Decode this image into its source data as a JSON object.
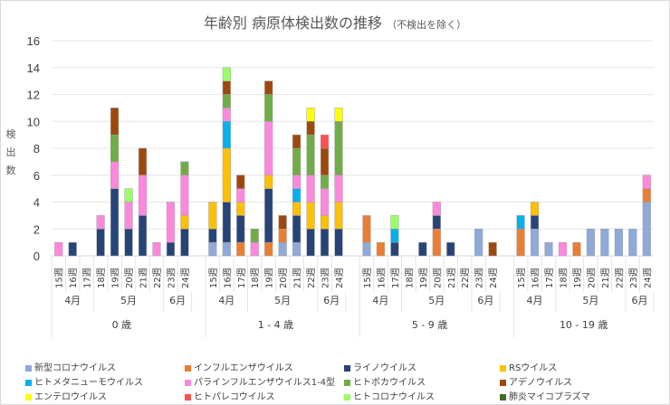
{
  "chart_data": {
    "type": "bar",
    "stacked": true,
    "title": "年齢別 病原体検出数の推移",
    "subtitle": "（不検出を除く）",
    "ylabel": "検出数",
    "xlabel": "",
    "ylim": [
      0,
      16
    ],
    "yticks": [
      0,
      2,
      4,
      6,
      8,
      10,
      12,
      14,
      16
    ],
    "grid": true,
    "legend_position": "bottom",
    "week_labels": [
      "15週",
      "16週",
      "17週",
      "18週",
      "19週",
      "20週",
      "21週",
      "22週",
      "23週",
      "24週"
    ],
    "month_labels": [
      {
        "label": "4月",
        "weeks": [
          0,
          2
        ]
      },
      {
        "label": "5月",
        "weeks": [
          3,
          7
        ]
      },
      {
        "label": "6月",
        "weeks": [
          8,
          9
        ]
      }
    ],
    "groups": [
      "0 歳",
      "1 - 4 歳",
      "5 - 9 歳",
      "10 - 19 歳"
    ],
    "series": [
      {
        "name": "新型コロナウイルス",
        "color": "#8eaadb",
        "values": [
          [
            0,
            0,
            0,
            0,
            0,
            0,
            0,
            0,
            0,
            0
          ],
          [
            1,
            1,
            0,
            0,
            0,
            1,
            1,
            0,
            0,
            0
          ],
          [
            1,
            0,
            0,
            0,
            0,
            0,
            0,
            0,
            2,
            0
          ],
          [
            0,
            2,
            1,
            0,
            0,
            2,
            2,
            2,
            2,
            4
          ]
        ]
      },
      {
        "name": "インフルエンザウイルス",
        "color": "#ed7d31",
        "values": [
          [
            0,
            0,
            0,
            0,
            0,
            0,
            0,
            0,
            0,
            0
          ],
          [
            0,
            0,
            1,
            0,
            1,
            1,
            0,
            0,
            0,
            0
          ],
          [
            2,
            1,
            0,
            0,
            0,
            2,
            0,
            0,
            0,
            0
          ],
          [
            2,
            0,
            0,
            0,
            1,
            0,
            0,
            0,
            0,
            1
          ]
        ]
      },
      {
        "name": "ライノウイルス",
        "color": "#264478",
        "values": [
          [
            0,
            1,
            0,
            2,
            5,
            2,
            3,
            0,
            1,
            2
          ],
          [
            1,
            3,
            2,
            0,
            4,
            0,
            2,
            2,
            2,
            2
          ],
          [
            0,
            0,
            1,
            0,
            1,
            1,
            1,
            0,
            0,
            0
          ],
          [
            0,
            1,
            0,
            0,
            0,
            0,
            0,
            0,
            0,
            0
          ]
        ]
      },
      {
        "name": "RSウイルス",
        "color": "#ffc000",
        "values": [
          [
            0,
            0,
            0,
            0,
            0,
            0,
            0,
            0,
            0,
            1
          ],
          [
            2,
            4,
            1,
            0,
            1,
            0,
            1,
            2,
            1,
            2
          ],
          [
            0,
            0,
            0,
            0,
            0,
            0,
            0,
            0,
            0,
            0
          ],
          [
            0,
            1,
            0,
            0,
            0,
            0,
            0,
            0,
            0,
            0
          ]
        ]
      },
      {
        "name": "ヒトメタニューモウイルス",
        "color": "#00b0f0",
        "values": [
          [
            0,
            0,
            0,
            0,
            0,
            0,
            0,
            0,
            0,
            0
          ],
          [
            0,
            2,
            0,
            0,
            0,
            0,
            1,
            0,
            0,
            0
          ],
          [
            0,
            0,
            1,
            0,
            0,
            0,
            0,
            0,
            0,
            0
          ],
          [
            1,
            0,
            0,
            0,
            0,
            0,
            0,
            0,
            0,
            0
          ]
        ]
      },
      {
        "name": "パラインフルエンザウイルス1-4型",
        "color": "#ff88dd",
        "values": [
          [
            1,
            0,
            0,
            1,
            2,
            2,
            3,
            1,
            3,
            3
          ],
          [
            0,
            1,
            1,
            1,
            4,
            0,
            1,
            2,
            2,
            2
          ],
          [
            0,
            0,
            0,
            0,
            0,
            1,
            0,
            0,
            0,
            0
          ],
          [
            0,
            0,
            0,
            1,
            0,
            0,
            0,
            0,
            0,
            1
          ]
        ]
      },
      {
        "name": "ヒトボカウイルス",
        "color": "#70ad47",
        "values": [
          [
            0,
            0,
            0,
            0,
            2,
            0,
            0,
            0,
            0,
            1
          ],
          [
            0,
            1,
            0,
            1,
            2,
            0,
            2,
            3,
            1,
            4
          ],
          [
            0,
            0,
            0,
            0,
            0,
            0,
            0,
            0,
            0,
            0
          ],
          [
            0,
            0,
            0,
            0,
            0,
            0,
            0,
            0,
            0,
            0
          ]
        ]
      },
      {
        "name": "アデノウイルス",
        "color": "#9e480e",
        "values": [
          [
            0,
            0,
            0,
            0,
            2,
            0,
            2,
            0,
            0,
            0
          ],
          [
            0,
            1,
            1,
            0,
            1,
            1,
            1,
            1,
            2,
            0
          ],
          [
            0,
            0,
            0,
            0,
            0,
            0,
            0,
            0,
            0,
            1
          ],
          [
            0,
            0,
            0,
            0,
            0,
            0,
            0,
            0,
            0,
            0
          ]
        ]
      },
      {
        "name": "エンテロウイルス",
        "color": "#ffff00",
        "values": [
          [
            0,
            0,
            0,
            0,
            0,
            0,
            0,
            0,
            0,
            0
          ],
          [
            0,
            0,
            0,
            0,
            0,
            0,
            0,
            1,
            0,
            1
          ],
          [
            0,
            0,
            0,
            0,
            0,
            0,
            0,
            0,
            0,
            0
          ],
          [
            0,
            0,
            0,
            0,
            0,
            0,
            0,
            0,
            0,
            0
          ]
        ]
      },
      {
        "name": "ヒトパレコウイルス",
        "color": "#ff4f4f",
        "values": [
          [
            0,
            0,
            0,
            0,
            0,
            0,
            0,
            0,
            0,
            0
          ],
          [
            0,
            0,
            0,
            0,
            0,
            0,
            0,
            0,
            1,
            0
          ],
          [
            0,
            0,
            0,
            0,
            0,
            0,
            0,
            0,
            0,
            0
          ],
          [
            0,
            0,
            0,
            0,
            0,
            0,
            0,
            0,
            0,
            0
          ]
        ]
      },
      {
        "name": "ヒトコロナウイルス",
        "color": "#99ff66",
        "values": [
          [
            0,
            0,
            0,
            0,
            0,
            1,
            0,
            0,
            0,
            0
          ],
          [
            0,
            1,
            0,
            0,
            0,
            0,
            0,
            0,
            0,
            0
          ],
          [
            0,
            0,
            1,
            0,
            0,
            0,
            0,
            0,
            0,
            0
          ],
          [
            0,
            0,
            0,
            0,
            0,
            0,
            0,
            0,
            0,
            0
          ]
        ]
      },
      {
        "name": "肺炎マイコプラズマ",
        "color": "#43682b",
        "values": [
          [
            0,
            0,
            0,
            0,
            0,
            0,
            0,
            0,
            0,
            0
          ],
          [
            0,
            0,
            0,
            0,
            0,
            0,
            0,
            0,
            0,
            0
          ],
          [
            0,
            0,
            0,
            0,
            0,
            0,
            0,
            0,
            0,
            0
          ],
          [
            0,
            0,
            0,
            0,
            0,
            0,
            0,
            0,
            0,
            0
          ]
        ]
      }
    ]
  }
}
